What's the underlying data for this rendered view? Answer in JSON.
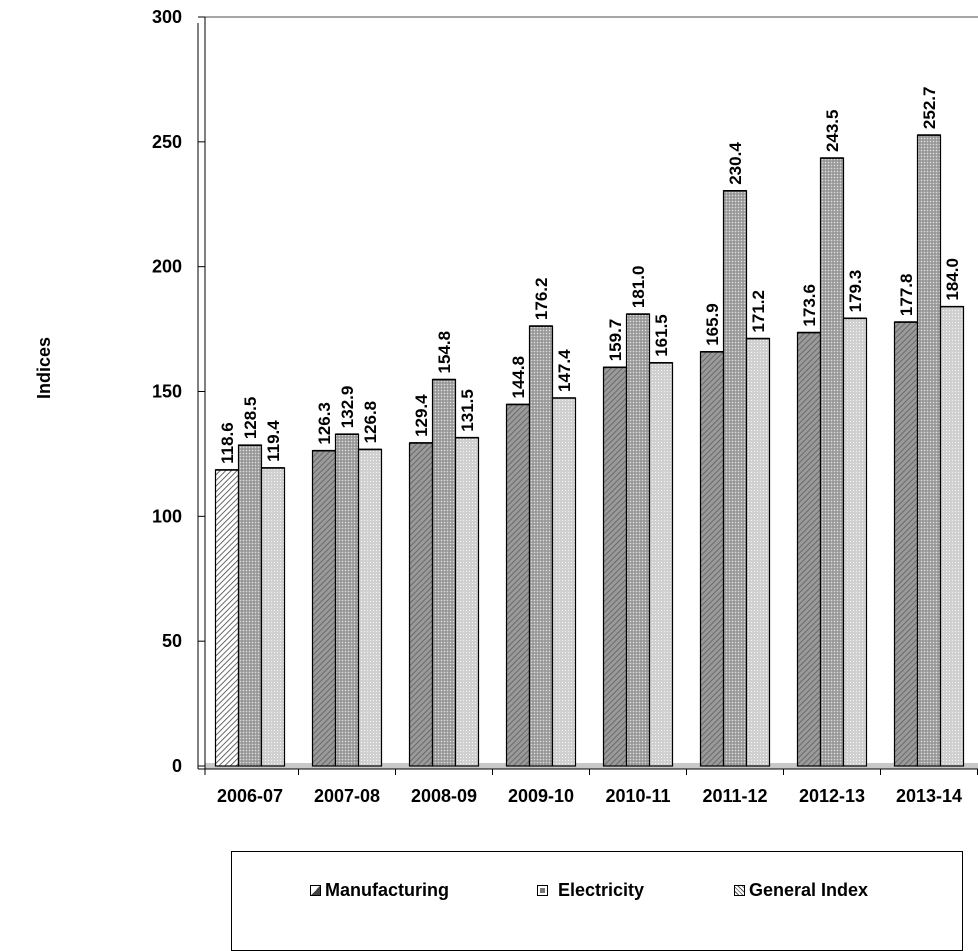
{
  "chart_data": {
    "type": "bar",
    "ylabel": "Indices",
    "xlabel": "",
    "ylim": [
      0,
      300
    ],
    "yticks": [
      "0",
      "50",
      "100",
      "150",
      "200",
      "250",
      "300"
    ],
    "categories": [
      "2006-07",
      "2007-08",
      "2008-09",
      "2009-10",
      "2010-11",
      "2011-12",
      "2012-13",
      "2013-14"
    ],
    "series": [
      {
        "name": "Manufacturing",
        "values": [
          118.6,
          126.3,
          129.4,
          144.8,
          159.7,
          165.9,
          173.6,
          177.8
        ],
        "labels": [
          "118.6",
          "126.3",
          "129.4",
          "144.8",
          "159.7",
          "165.9",
          "173.6",
          "177.8"
        ]
      },
      {
        "name": "Electricity",
        "values": [
          128.5,
          132.9,
          154.8,
          176.2,
          181.0,
          230.4,
          243.5,
          252.7
        ],
        "labels": [
          "128.5",
          "132.9",
          "154.8",
          "176.2",
          "181.0",
          "230.4",
          "243.5",
          "252.7"
        ]
      },
      {
        "name": "General Index",
        "values": [
          119.4,
          126.8,
          131.5,
          147.4,
          161.5,
          171.2,
          179.3,
          184.0
        ],
        "labels": [
          "119.4",
          "126.8",
          "131.5",
          "147.4",
          "161.5",
          "171.2",
          "179.3",
          "184.0"
        ]
      }
    ],
    "legend_position": "bottom",
    "grid": false
  },
  "legend": {
    "items": [
      "Manufacturing",
      "Electricity",
      "General Index"
    ]
  }
}
